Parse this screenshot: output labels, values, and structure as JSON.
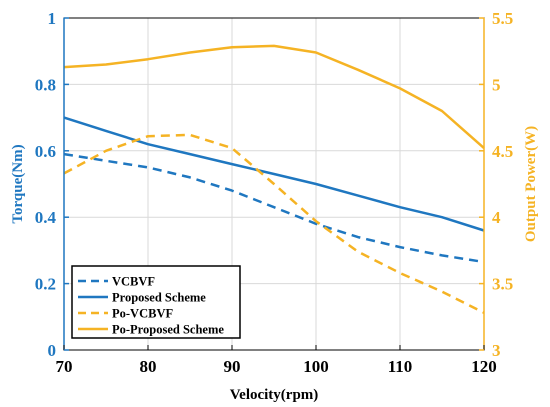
{
  "chart_data": {
    "type": "line",
    "title": "",
    "xlabel": "Velocity(rpm)",
    "ylabel_left": "Torque(Nm)",
    "ylabel_right": "Output Power(W)",
    "xlim": [
      70,
      120
    ],
    "ylim_left": [
      0,
      1
    ],
    "ylim_right": [
      3,
      5.5
    ],
    "x_ticks": [
      70,
      80,
      90,
      100,
      110,
      120
    ],
    "x_tick_labels": [
      "70",
      "80",
      "90",
      "100",
      "110",
      "120"
    ],
    "y_left_ticks": [
      0,
      0.2,
      0.4,
      0.6,
      0.8,
      1
    ],
    "y_left_tick_labels": [
      "0",
      "0.2",
      "0.4",
      "0.6",
      "0.8",
      "1"
    ],
    "y_right_ticks": [
      3,
      3.5,
      4,
      4.5,
      5,
      5.5
    ],
    "y_right_tick_labels": [
      "3",
      "3.5",
      "4",
      "4.5",
      "5",
      "5.5"
    ],
    "grid": true,
    "legend_position": "bottom-left",
    "left_axis_color": "#1f77c0",
    "right_axis_color": "#f5b324",
    "series": [
      {
        "name": "VCBVF",
        "axis": "left",
        "style": "dashed",
        "color": "#1f77c0",
        "x": [
          70,
          75,
          80,
          85,
          90,
          95,
          100,
          105,
          110,
          115,
          120
        ],
        "y": [
          0.59,
          0.57,
          0.55,
          0.52,
          0.48,
          0.43,
          0.38,
          0.34,
          0.31,
          0.285,
          0.265
        ]
      },
      {
        "name": "Proposed Scheme",
        "axis": "left",
        "style": "solid",
        "color": "#1f77c0",
        "x": [
          70,
          75,
          80,
          85,
          90,
          95,
          100,
          105,
          110,
          115,
          120
        ],
        "y": [
          0.7,
          0.66,
          0.62,
          0.59,
          0.56,
          0.53,
          0.5,
          0.465,
          0.43,
          0.4,
          0.36
        ]
      },
      {
        "name": "Po-VCBVF",
        "axis": "right",
        "style": "dashed",
        "color": "#f5b324",
        "x": [
          70,
          75,
          80,
          85,
          90,
          95,
          100,
          105,
          110,
          115,
          120
        ],
        "y": [
          4.33,
          4.5,
          4.61,
          4.62,
          4.52,
          4.25,
          3.97,
          3.74,
          3.58,
          3.44,
          3.28
        ]
      },
      {
        "name": "Po-Proposed Scheme",
        "axis": "right",
        "style": "solid",
        "color": "#f5b324",
        "x": [
          70,
          75,
          80,
          85,
          90,
          95,
          100,
          105,
          110,
          115,
          120
        ],
        "y": [
          5.13,
          5.15,
          5.19,
          5.24,
          5.28,
          5.29,
          5.24,
          5.11,
          4.97,
          4.8,
          4.52
        ]
      }
    ]
  }
}
